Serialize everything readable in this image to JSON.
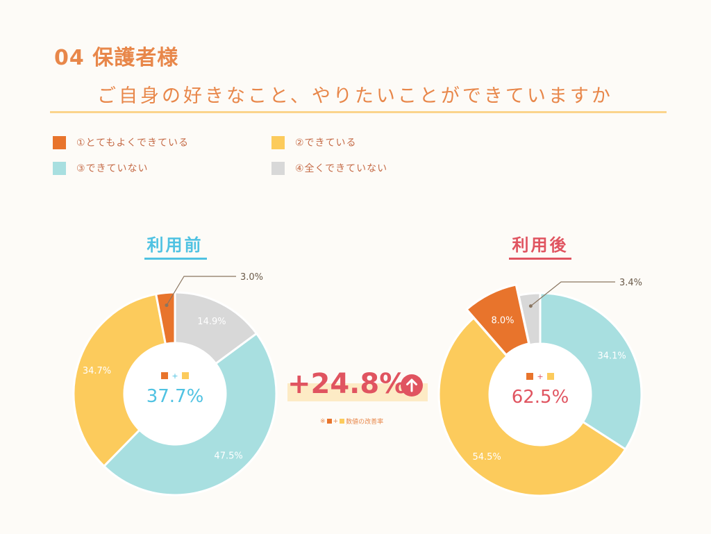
{
  "header": {
    "number_title": "04 保護者様",
    "question": "ご自身の好きなこと、やりたいことができていますか"
  },
  "legend": [
    {
      "label": "①とてもよくできている",
      "color": "#e8742c"
    },
    {
      "label": "②できている",
      "color": "#fccb5c"
    },
    {
      "label": "③できていない",
      "color": "#a8dfe0"
    },
    {
      "label": "④全くできていない",
      "color": "#d8d8d8"
    }
  ],
  "improvement": {
    "value": "+24.8%",
    "note_prefix": "※",
    "note_plus": "+",
    "note_suffix": "数値の改善率",
    "arrow_icon": "up-arrow-circle-icon"
  },
  "chart_data": [
    {
      "type": "pie",
      "title": "利用前",
      "title_color": "#4fc2e2",
      "categories": [
        "①とてもよくできている",
        "②できている",
        "③できていない",
        "④全くできていない"
      ],
      "values": [
        3.0,
        34.7,
        47.5,
        14.9
      ],
      "labels": [
        "3.0%",
        "34.7%",
        "47.5%",
        "14.9%"
      ],
      "center_value": "37.7%",
      "center_plus": "+",
      "center_color": "#4fc2e2"
    },
    {
      "type": "pie",
      "title": "利用後",
      "title_color": "#e05460",
      "categories": [
        "①とてもよくできている",
        "②できている",
        "③できていない",
        "④全くできていない"
      ],
      "values": [
        8.0,
        54.5,
        34.1,
        3.4
      ],
      "labels": [
        "8.0%",
        "54.5%",
        "34.1%",
        "3.4%"
      ],
      "center_value": "62.5%",
      "center_plus": "+",
      "center_color": "#e05460"
    }
  ]
}
